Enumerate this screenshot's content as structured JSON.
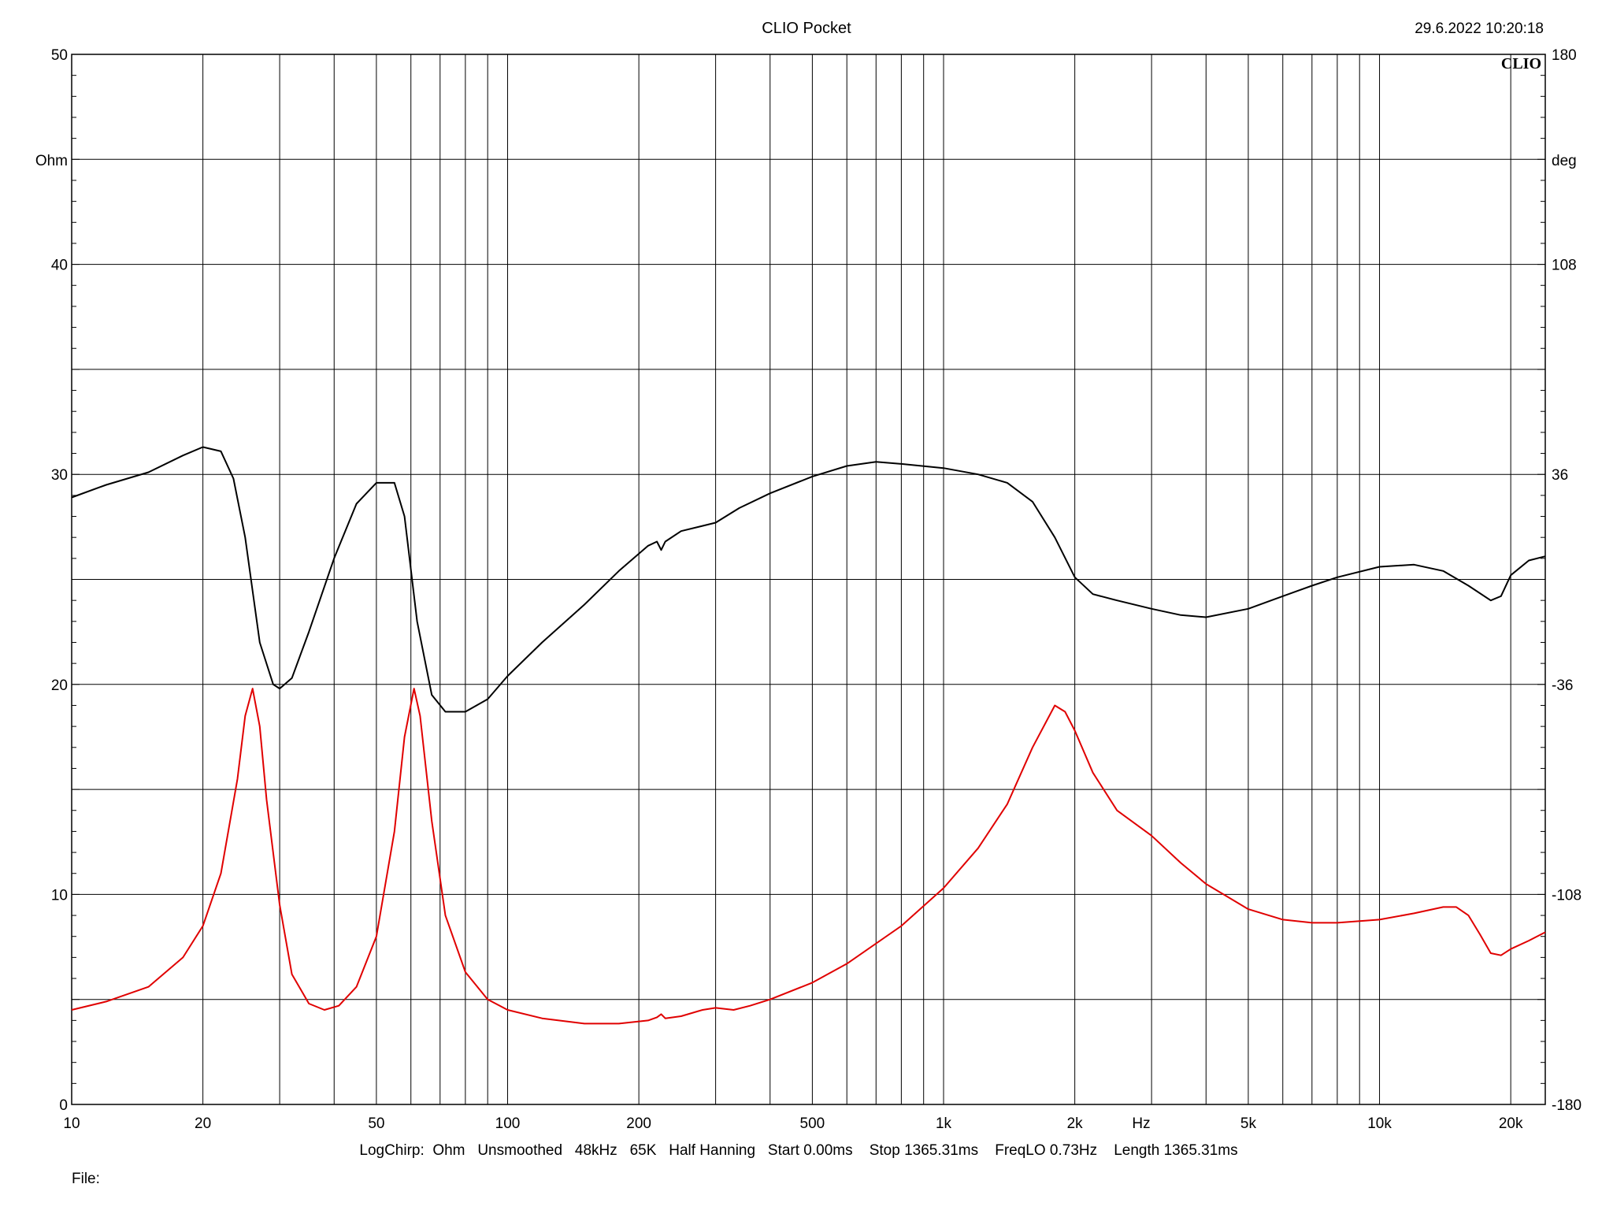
{
  "header": {
    "title": "CLIO Pocket",
    "timestamp": "29.6.2022 10:20:18",
    "logo": "CLIO"
  },
  "footer": {
    "settings": "LogChirp:  Ohm   Unsmoothed   48kHz   65K   Half Hanning   Start 0.00ms    Stop 1365.31ms    FreqLO 0.73Hz    Length 1365.31ms",
    "file_label": "File:"
  },
  "chart_data": {
    "type": "line",
    "x_scale": "log",
    "xlim": [
      10,
      24000
    ],
    "xlabel": "Hz",
    "x_ticks": [
      {
        "value": 10,
        "label": "10"
      },
      {
        "value": 20,
        "label": "20"
      },
      {
        "value": 50,
        "label": "50"
      },
      {
        "value": 100,
        "label": "100"
      },
      {
        "value": 200,
        "label": "200"
      },
      {
        "value": 500,
        "label": "500"
      },
      {
        "value": 1000,
        "label": "1k"
      },
      {
        "value": 2000,
        "label": "2k"
      },
      {
        "value": 5000,
        "label": "5k"
      },
      {
        "value": 10000,
        "label": "10k"
      },
      {
        "value": 20000,
        "label": "20k"
      }
    ],
    "y_left": {
      "label": "Ohm",
      "lim": [
        0,
        50
      ],
      "ticks": [
        {
          "value": 0,
          "label": "0"
        },
        {
          "value": 10,
          "label": "10"
        },
        {
          "value": 20,
          "label": "20"
        },
        {
          "value": 30,
          "label": "30"
        },
        {
          "value": 40,
          "label": "40"
        },
        {
          "value": 50,
          "label": "50"
        }
      ],
      "gridlines": [
        0,
        5,
        10,
        15,
        20,
        25,
        30,
        35,
        40,
        45,
        50
      ]
    },
    "y_right": {
      "label": "deg",
      "lim": [
        -180,
        180
      ],
      "ticks": [
        {
          "value": 180,
          "label": "180"
        },
        {
          "value": 108,
          "label": "108"
        },
        {
          "value": 36,
          "label": "36"
        },
        {
          "value": -36,
          "label": "-36"
        },
        {
          "value": -108,
          "label": "-108"
        },
        {
          "value": -180,
          "label": "-180"
        }
      ]
    },
    "grid": true,
    "series": [
      {
        "axis": "right",
        "color": "#000000",
        "points": [
          [
            10,
            28.9
          ],
          [
            12,
            29.5
          ],
          [
            15,
            30.1
          ],
          [
            18,
            30.9
          ],
          [
            20,
            31.3
          ],
          [
            22,
            31.1
          ],
          [
            23.5,
            29.8
          ],
          [
            25,
            27.0
          ],
          [
            27,
            22.0
          ],
          [
            29,
            20.0
          ],
          [
            30,
            19.8
          ],
          [
            32,
            20.3
          ],
          [
            35,
            22.5
          ],
          [
            40,
            26.0
          ],
          [
            45,
            28.6
          ],
          [
            50,
            29.6
          ],
          [
            55,
            29.6
          ],
          [
            58,
            28.0
          ],
          [
            62,
            23.0
          ],
          [
            67,
            19.5
          ],
          [
            72,
            18.7
          ],
          [
            80,
            18.7
          ],
          [
            90,
            19.3
          ],
          [
            100,
            20.4
          ],
          [
            120,
            22.0
          ],
          [
            150,
            23.8
          ],
          [
            180,
            25.4
          ],
          [
            210,
            26.6
          ],
          [
            220,
            26.8
          ],
          [
            225,
            26.4
          ],
          [
            230,
            26.8
          ],
          [
            250,
            27.3
          ],
          [
            300,
            27.7
          ],
          [
            340,
            28.4
          ],
          [
            400,
            29.1
          ],
          [
            500,
            29.9
          ],
          [
            600,
            30.4
          ],
          [
            700,
            30.6
          ],
          [
            800,
            30.5
          ],
          [
            1000,
            30.3
          ],
          [
            1200,
            30.0
          ],
          [
            1400,
            29.6
          ],
          [
            1600,
            28.7
          ],
          [
            1800,
            27.0
          ],
          [
            2000,
            25.1
          ],
          [
            2200,
            24.3
          ],
          [
            2500,
            24.0
          ],
          [
            3000,
            23.6
          ],
          [
            3500,
            23.3
          ],
          [
            4000,
            23.2
          ],
          [
            5000,
            23.6
          ],
          [
            6000,
            24.2
          ],
          [
            7000,
            24.7
          ],
          [
            8000,
            25.1
          ],
          [
            10000,
            25.6
          ],
          [
            12000,
            25.7
          ],
          [
            14000,
            25.4
          ],
          [
            16000,
            24.7
          ],
          [
            18000,
            24.0
          ],
          [
            19000,
            24.2
          ],
          [
            20000,
            25.2
          ],
          [
            22000,
            25.9
          ],
          [
            24000,
            26.1
          ]
        ]
      },
      {
        "axis": "left",
        "color": "#e00000",
        "points": [
          [
            10,
            4.5
          ],
          [
            12,
            4.9
          ],
          [
            15,
            5.6
          ],
          [
            18,
            7.0
          ],
          [
            20,
            8.5
          ],
          [
            22,
            11.0
          ],
          [
            24,
            15.5
          ],
          [
            25,
            18.5
          ],
          [
            26,
            19.8
          ],
          [
            27,
            18.0
          ],
          [
            28,
            14.5
          ],
          [
            30,
            9.5
          ],
          [
            32,
            6.2
          ],
          [
            35,
            4.8
          ],
          [
            38,
            4.5
          ],
          [
            41,
            4.7
          ],
          [
            45,
            5.6
          ],
          [
            50,
            8.0
          ],
          [
            55,
            13.0
          ],
          [
            58,
            17.5
          ],
          [
            61,
            19.8
          ],
          [
            63,
            18.5
          ],
          [
            67,
            13.5
          ],
          [
            72,
            9.0
          ],
          [
            80,
            6.3
          ],
          [
            90,
            5.0
          ],
          [
            100,
            4.5
          ],
          [
            120,
            4.1
          ],
          [
            150,
            3.85
          ],
          [
            180,
            3.85
          ],
          [
            210,
            4.0
          ],
          [
            220,
            4.15
          ],
          [
            225,
            4.3
          ],
          [
            230,
            4.1
          ],
          [
            250,
            4.2
          ],
          [
            280,
            4.5
          ],
          [
            300,
            4.6
          ],
          [
            330,
            4.5
          ],
          [
            360,
            4.7
          ],
          [
            400,
            5.0
          ],
          [
            500,
            5.8
          ],
          [
            600,
            6.7
          ],
          [
            800,
            8.5
          ],
          [
            1000,
            10.3
          ],
          [
            1200,
            12.2
          ],
          [
            1400,
            14.3
          ],
          [
            1600,
            17.0
          ],
          [
            1800,
            19.0
          ],
          [
            1900,
            18.7
          ],
          [
            2000,
            17.8
          ],
          [
            2200,
            15.8
          ],
          [
            2500,
            14.0
          ],
          [
            3000,
            12.8
          ],
          [
            3500,
            11.5
          ],
          [
            4000,
            10.5
          ],
          [
            5000,
            9.3
          ],
          [
            6000,
            8.8
          ],
          [
            7000,
            8.65
          ],
          [
            8000,
            8.65
          ],
          [
            10000,
            8.8
          ],
          [
            12000,
            9.1
          ],
          [
            14000,
            9.4
          ],
          [
            15000,
            9.4
          ],
          [
            16000,
            9.0
          ],
          [
            17000,
            8.1
          ],
          [
            18000,
            7.2
          ],
          [
            19000,
            7.1
          ],
          [
            20000,
            7.4
          ],
          [
            22000,
            7.8
          ],
          [
            24000,
            8.2
          ]
        ]
      }
    ]
  }
}
